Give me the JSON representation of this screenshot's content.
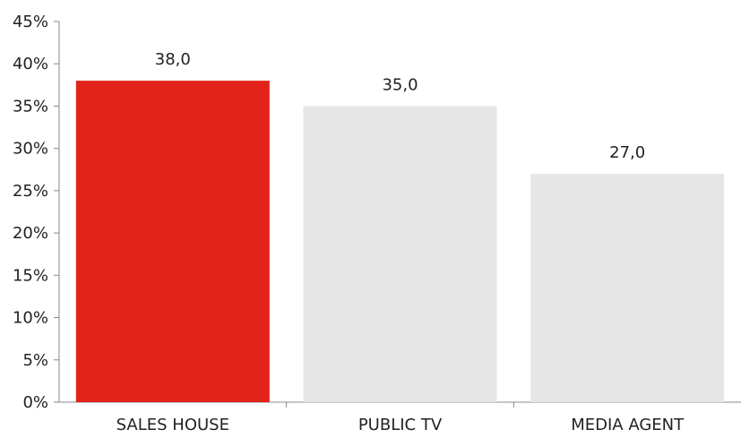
{
  "chart_data": {
    "type": "bar",
    "title": "",
    "xlabel": "",
    "ylabel": "",
    "categories": [
      "SALES HOUSE",
      "PUBLIC TV",
      "MEDIA AGENT"
    ],
    "values": [
      38.0,
      35.0,
      27.0
    ],
    "data_labels": [
      "38,0",
      "35,0",
      "27,0"
    ],
    "ylim": [
      0,
      45
    ],
    "yticks": [
      0,
      5,
      10,
      15,
      20,
      25,
      30,
      35,
      40,
      45
    ],
    "ytick_labels": [
      "0%",
      "5%",
      "10%",
      "15%",
      "20%",
      "25%",
      "30%",
      "35%",
      "40%",
      "45%"
    ],
    "bar_colors": [
      "#e2231a",
      "#e6e6e6",
      "#e6e6e6"
    ],
    "axis_color": "#888888",
    "grid": false,
    "legend": "none"
  }
}
